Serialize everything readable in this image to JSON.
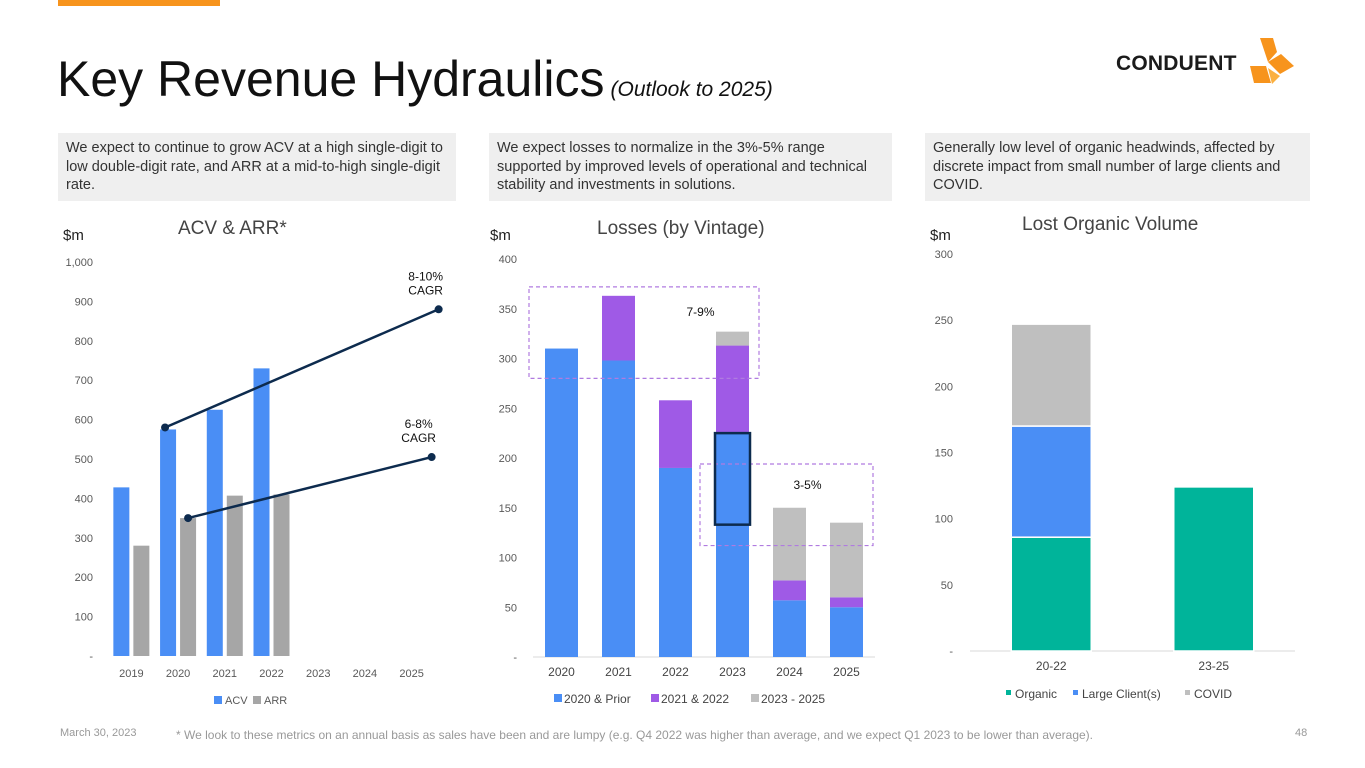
{
  "header": {
    "title": "Key Revenue Hydraulics",
    "subtitle": "(Outlook to 2025)",
    "logo_text": "CONDUENT"
  },
  "callouts": [
    "We expect to continue to grow ACV at a high single-digit to low double-digit rate, and ARR at a mid-to-high single-digit rate.",
    "We expect losses to normalize in the 3%-5% range supported by improved levels of operational and technical stability and investments in solutions.",
    "Generally low level of organic headwinds, affected by discrete impact from small number of large clients and COVID."
  ],
  "chart_data": [
    {
      "type": "bar",
      "title": "ACV & ARR*",
      "ylabel": "$m",
      "ylim": [
        0,
        1000
      ],
      "yticks": [
        0,
        100,
        200,
        300,
        400,
        500,
        600,
        700,
        800,
        900,
        1000
      ],
      "ytick_labels": [
        "-",
        "100",
        "200",
        "300",
        "400",
        "500",
        "600",
        "700",
        "800",
        "900",
        "1,000"
      ],
      "categories": [
        "2019",
        "2020",
        "2021",
        "2022",
        "2023",
        "2024",
        "2025"
      ],
      "series": [
        {
          "name": "ACV",
          "color": "#4a8ef5",
          "values": [
            428,
            575,
            625,
            730,
            null,
            null,
            null
          ]
        },
        {
          "name": "ARR",
          "color": "#a6a6a6",
          "values": [
            280,
            350,
            407,
            410,
            null,
            null,
            null
          ]
        }
      ],
      "trend_lines": [
        {
          "label_line1": "8-10%",
          "label_line2": "CAGR",
          "from": [
            "2020",
            580
          ],
          "to": [
            "2025",
            880
          ]
        },
        {
          "label_line1": "6-8%",
          "label_line2": "CAGR",
          "from": [
            "2020",
            350
          ],
          "to": [
            "2025",
            505
          ]
        }
      ]
    },
    {
      "type": "stacked-bar",
      "title": "Losses (by Vintage)",
      "ylabel": "$m",
      "ylim": [
        0,
        400
      ],
      "yticks": [
        0,
        50,
        100,
        150,
        200,
        250,
        300,
        350,
        400
      ],
      "ytick_labels": [
        "-",
        "50",
        "100",
        "150",
        "200",
        "250",
        "300",
        "350",
        "400"
      ],
      "categories": [
        "2020",
        "2021",
        "2022",
        "2023",
        "2024",
        "2025"
      ],
      "series": [
        {
          "name": "2020 & Prior",
          "color": "#4a8ef5",
          "values": [
            310,
            298,
            190,
            225,
            57,
            50
          ]
        },
        {
          "name": "2021 & 2022",
          "color": "#9f5ae6",
          "values": [
            0,
            65,
            68,
            88,
            20,
            10
          ]
        },
        {
          "name": "2023 - 2025",
          "color": "#bfbfbf",
          "values": [
            0,
            0,
            0,
            14,
            73,
            75
          ]
        }
      ],
      "annotations": [
        {
          "text": "7-9%",
          "categories": [
            "2020",
            "2023"
          ],
          "range": [
            280,
            372
          ]
        },
        {
          "text": "3-5%",
          "categories": [
            "2023",
            "2025"
          ],
          "range": [
            112,
            194
          ]
        }
      ],
      "highlight": {
        "category": "2023",
        "range": [
          133,
          225
        ]
      }
    },
    {
      "type": "stacked-bar",
      "title": "Lost Organic Volume",
      "ylabel": "$m",
      "ylim": [
        0,
        300
      ],
      "yticks": [
        0,
        50,
        100,
        150,
        200,
        250,
        300
      ],
      "ytick_labels": [
        "-",
        "50",
        "100",
        "150",
        "200",
        "250",
        "300"
      ],
      "categories": [
        "20-22",
        "23-25"
      ],
      "series": [
        {
          "name": "Organic",
          "color": "#00b49a",
          "values": [
            86,
            124
          ]
        },
        {
          "name": "Large Client(s)",
          "color": "#4a8ef5",
          "values": [
            84,
            0
          ]
        },
        {
          "name": "COVID",
          "color": "#bfbfbf",
          "values": [
            77,
            0
          ]
        }
      ]
    }
  ],
  "footer": {
    "date": "March 30, 2023",
    "footnote": "* We look to these metrics on an annual basis as sales have been and are lumpy (e.g. Q4 2022 was higher than average, and we expect Q1 2023 to be lower than average).",
    "page_number": "48"
  },
  "colors": {
    "accent": "#f7941d",
    "trend": "#0d2b4e",
    "annotation_box": "#b07be0"
  },
  "icons": [
    "conduent-logo-icon"
  ]
}
